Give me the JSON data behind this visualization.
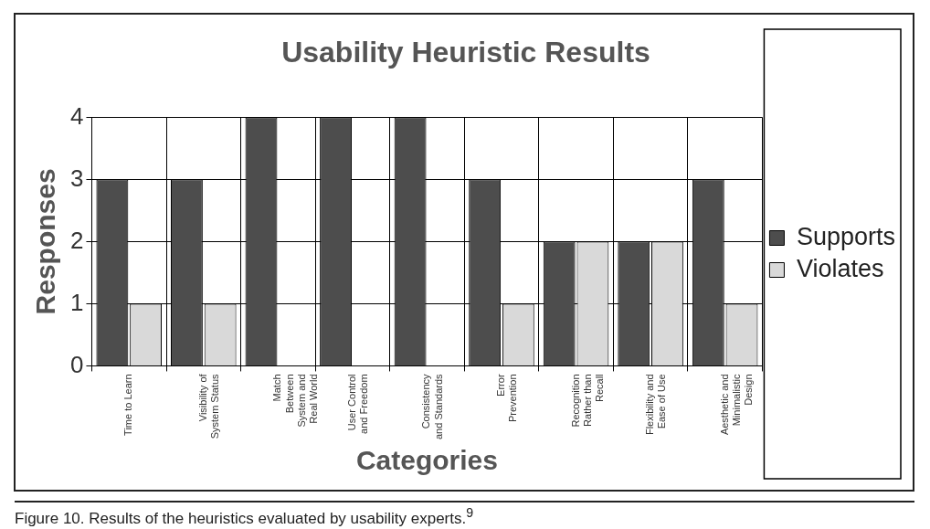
{
  "chart_data": {
    "type": "bar",
    "title": "Usability Heuristic Results",
    "xlabel": "Categories",
    "ylabel": "Responses",
    "categories": [
      "Time to Learn",
      "Visibility of\nSystem Status",
      "Match\nBetween\nSystem and\nReal World",
      "User Control\nand Freedom",
      "Consistency\nand Standards",
      "Error\nPrevention",
      "Recognition\nRather than\nRecall",
      "Flexibility and\nEase of Use",
      "Aesthetic and\nMinimalistic\nDesign"
    ],
    "series": [
      {
        "name": "Supports",
        "color": "#4d4d4d",
        "values": [
          3,
          3,
          4,
          4,
          4,
          3,
          2,
          2,
          3
        ]
      },
      {
        "name": "Violates",
        "color": "#d9d9d9",
        "values": [
          1,
          1,
          0,
          0,
          0,
          1,
          2,
          2,
          1
        ]
      }
    ],
    "ylim": [
      0,
      4
    ],
    "yticks": [
      0,
      1,
      2,
      3,
      4
    ],
    "grid": true,
    "legend": "right",
    "annotations": [
      "Figure 10. Results of the heuristics evaluated by usability experts.$^{9}$"
    ]
  }
}
